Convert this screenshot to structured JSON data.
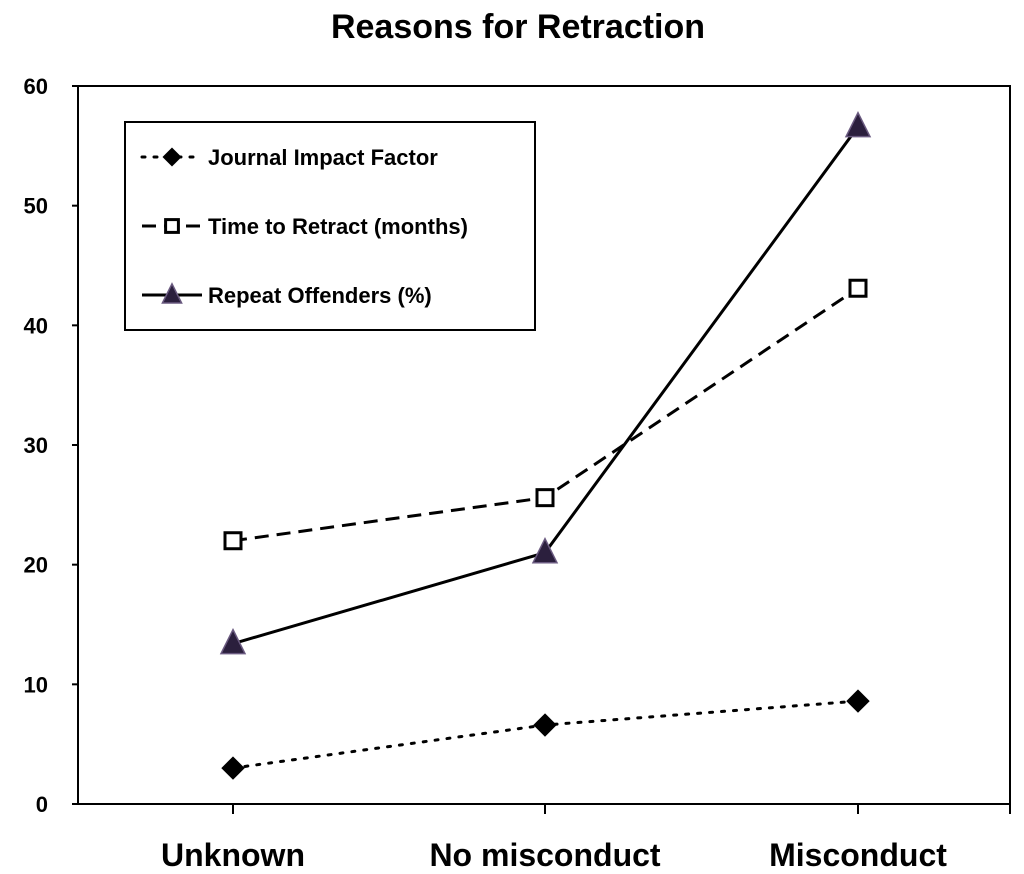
{
  "chart_data": {
    "type": "line",
    "title": "Reasons for Retraction",
    "xlabel": "",
    "ylabel": "",
    "categories": [
      "Unknown",
      "No misconduct",
      "Misconduct"
    ],
    "ylim": [
      0,
      60
    ],
    "yticks": [
      0,
      10,
      20,
      30,
      40,
      50,
      60
    ],
    "grid": false,
    "legend_position": "top-left",
    "series": [
      {
        "name": "Journal Impact Factor",
        "values": [
          3.0,
          6.6,
          8.6
        ],
        "line_style": "dotted",
        "marker": "diamond",
        "color": "#000000"
      },
      {
        "name": "Time to Retract (months)",
        "values": [
          22.0,
          25.6,
          43.1
        ],
        "line_style": "dashed",
        "marker": "square-open",
        "color": "#000000"
      },
      {
        "name": "Repeat Offenders (%)",
        "values": [
          13.4,
          21.0,
          56.6
        ],
        "line_style": "solid",
        "marker": "triangle",
        "color": "#000000",
        "marker_fill": "#2b1f3d"
      }
    ]
  }
}
